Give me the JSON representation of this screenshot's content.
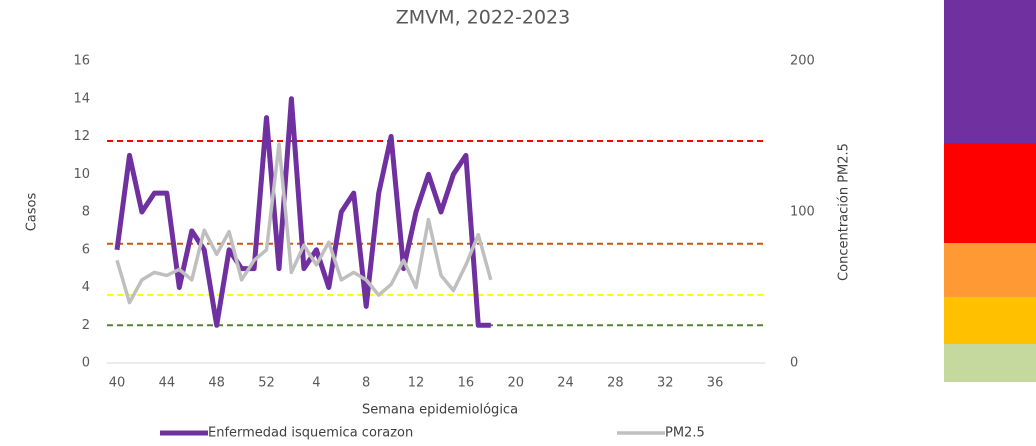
{
  "chart_data": {
    "type": "line",
    "title": "ZMVM, 2022-2023",
    "x_label": "Semana epidemiológica",
    "y_label": "Casos",
    "y2_label": "Concentración PM2.5",
    "categories": [
      "40",
      null,
      null,
      null,
      "44",
      null,
      null,
      null,
      "48",
      null,
      null,
      null,
      "52",
      null,
      null,
      null,
      "4",
      null,
      null,
      null,
      "8",
      null,
      null,
      null,
      "12",
      null,
      null,
      null,
      "16",
      null,
      null,
      null,
      "20",
      null,
      null,
      null,
      "24",
      null,
      null,
      null,
      "28",
      null,
      null,
      null,
      "32",
      null,
      null,
      null,
      "36",
      null,
      null,
      null
    ],
    "series": [
      {
        "name": "Enfermedad isquemica corazon",
        "color": "#7030a0",
        "values": [
          6,
          11,
          8,
          9,
          9,
          4,
          7,
          6,
          2,
          6,
          5,
          5,
          13,
          5,
          14,
          5,
          6,
          4,
          8,
          9,
          3,
          9,
          12,
          5,
          8,
          10,
          8,
          10,
          11,
          2,
          2,
          null,
          null,
          null,
          null,
          null,
          null,
          null,
          null,
          null,
          null,
          null,
          null,
          null,
          null,
          null,
          null,
          null,
          null,
          null,
          null,
          null
        ]
      },
      {
        "name": "PM2.5",
        "color": "#bfbfbf",
        "axis": "y2",
        "values": [
          68,
          40,
          55,
          60,
          58,
          62,
          55,
          88,
          72,
          87,
          55,
          68,
          75,
          145,
          60,
          78,
          65,
          80,
          55,
          60,
          55,
          45,
          52,
          68,
          50,
          95,
          58,
          48,
          65,
          85,
          55,
          null,
          null,
          null,
          null,
          null,
          null,
          null,
          null,
          null,
          null,
          null,
          null,
          null,
          null,
          null,
          null,
          null,
          null,
          null,
          null,
          null
        ]
      }
    ],
    "ylim": [
      0,
      16
    ],
    "yticks": [
      0,
      2,
      4,
      6,
      8,
      10,
      12,
      14,
      16
    ],
    "y2lim": [
      0,
      200
    ],
    "y2ticks": [
      0,
      100,
      200
    ],
    "thresholds": [
      {
        "value": 147,
        "color": "#ff0000",
        "axis": "y2"
      },
      {
        "value": 79,
        "color": "#c55a11",
        "axis": "y2"
      },
      {
        "value": 45,
        "color": "#ffff00",
        "axis": "y2"
      },
      {
        "value": 25,
        "color": "#548235",
        "axis": "y2"
      }
    ]
  }
}
